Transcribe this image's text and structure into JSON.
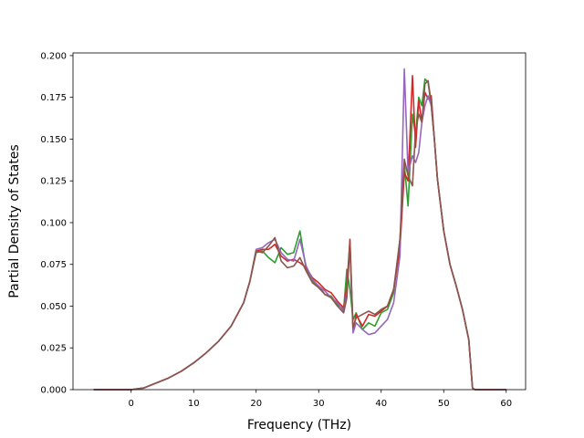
{
  "chart_data": {
    "type": "line",
    "title": "",
    "xlabel": "Frequency (THz)",
    "ylabel": "Partial Density of States",
    "xlim": [
      -9.3,
      63.1
    ],
    "ylim": [
      0.0,
      0.2016
    ],
    "xticks": [
      "0",
      "10",
      "20",
      "30",
      "40",
      "50",
      "60"
    ],
    "xtick_values": [
      0,
      10,
      20,
      30,
      40,
      50,
      60
    ],
    "yticks": [
      "0.000",
      "0.025",
      "0.050",
      "0.075",
      "0.100",
      "0.125",
      "0.150",
      "0.175",
      "0.200"
    ],
    "ytick_values": [
      0.0,
      0.025,
      0.05,
      0.075,
      0.1,
      0.125,
      0.15,
      0.175,
      0.2
    ],
    "grid": false,
    "legend": "none",
    "x": [
      -6,
      -3,
      0,
      2,
      4,
      6,
      8,
      10,
      12,
      14,
      16,
      18,
      19,
      20,
      21,
      22,
      23,
      24,
      25,
      26,
      27,
      28,
      29,
      30,
      31,
      32,
      33,
      34,
      34.5,
      35,
      35.5,
      36,
      37,
      38,
      39,
      40,
      41,
      42,
      43,
      43.7,
      44.3,
      45,
      45.5,
      46,
      46.5,
      47,
      47.5,
      48,
      48.5,
      49,
      50,
      51,
      52,
      53,
      54,
      54.6,
      55,
      57,
      60
    ],
    "series": [
      {
        "color": "#2ca02c",
        "values": [
          0,
          0,
          0,
          0.001,
          0.004,
          0.007,
          0.011,
          0.016,
          0.022,
          0.029,
          0.038,
          0.052,
          0.065,
          0.082,
          0.083,
          0.079,
          0.076,
          0.085,
          0.081,
          0.082,
          0.095,
          0.072,
          0.065,
          0.062,
          0.057,
          0.056,
          0.051,
          0.048,
          0.072,
          0.06,
          0.042,
          0.046,
          0.036,
          0.04,
          0.038,
          0.046,
          0.048,
          0.058,
          0.09,
          0.135,
          0.11,
          0.165,
          0.152,
          0.175,
          0.17,
          0.186,
          0.184,
          0.17,
          0.15,
          0.126,
          0.095,
          0.075,
          0.062,
          0.048,
          0.03,
          0.001,
          0,
          0,
          0
        ]
      },
      {
        "color": "#d62728",
        "values": [
          0,
          0,
          0,
          0.001,
          0.004,
          0.007,
          0.011,
          0.016,
          0.022,
          0.029,
          0.038,
          0.052,
          0.065,
          0.083,
          0.084,
          0.084,
          0.087,
          0.08,
          0.077,
          0.078,
          0.076,
          0.073,
          0.067,
          0.064,
          0.06,
          0.058,
          0.053,
          0.049,
          0.062,
          0.09,
          0.035,
          0.045,
          0.038,
          0.045,
          0.044,
          0.047,
          0.05,
          0.06,
          0.085,
          0.13,
          0.125,
          0.188,
          0.145,
          0.173,
          0.16,
          0.178,
          0.174,
          0.176,
          0.15,
          0.126,
          0.095,
          0.075,
          0.062,
          0.048,
          0.03,
          0.001,
          0,
          0,
          0
        ]
      },
      {
        "color": "#9467bd",
        "values": [
          0,
          0,
          0,
          0.001,
          0.004,
          0.007,
          0.011,
          0.016,
          0.022,
          0.029,
          0.038,
          0.052,
          0.065,
          0.084,
          0.085,
          0.088,
          0.09,
          0.082,
          0.078,
          0.077,
          0.09,
          0.074,
          0.066,
          0.062,
          0.059,
          0.055,
          0.052,
          0.047,
          0.058,
          0.085,
          0.034,
          0.04,
          0.036,
          0.033,
          0.034,
          0.038,
          0.042,
          0.052,
          0.08,
          0.192,
          0.13,
          0.14,
          0.136,
          0.142,
          0.16,
          0.17,
          0.176,
          0.17,
          0.15,
          0.126,
          0.095,
          0.075,
          0.062,
          0.048,
          0.03,
          0.001,
          0,
          0,
          0
        ]
      },
      {
        "color": "#8c564b",
        "values": [
          0,
          0,
          0,
          0.001,
          0.004,
          0.007,
          0.011,
          0.016,
          0.022,
          0.029,
          0.038,
          0.052,
          0.065,
          0.083,
          0.082,
          0.086,
          0.091,
          0.077,
          0.073,
          0.074,
          0.079,
          0.071,
          0.064,
          0.061,
          0.057,
          0.055,
          0.05,
          0.046,
          0.055,
          0.088,
          0.037,
          0.043,
          0.045,
          0.047,
          0.045,
          0.048,
          0.05,
          0.06,
          0.09,
          0.138,
          0.128,
          0.122,
          0.155,
          0.165,
          0.16,
          0.183,
          0.185,
          0.172,
          0.15,
          0.126,
          0.095,
          0.075,
          0.062,
          0.048,
          0.03,
          0.001,
          0,
          0,
          0
        ]
      }
    ]
  }
}
